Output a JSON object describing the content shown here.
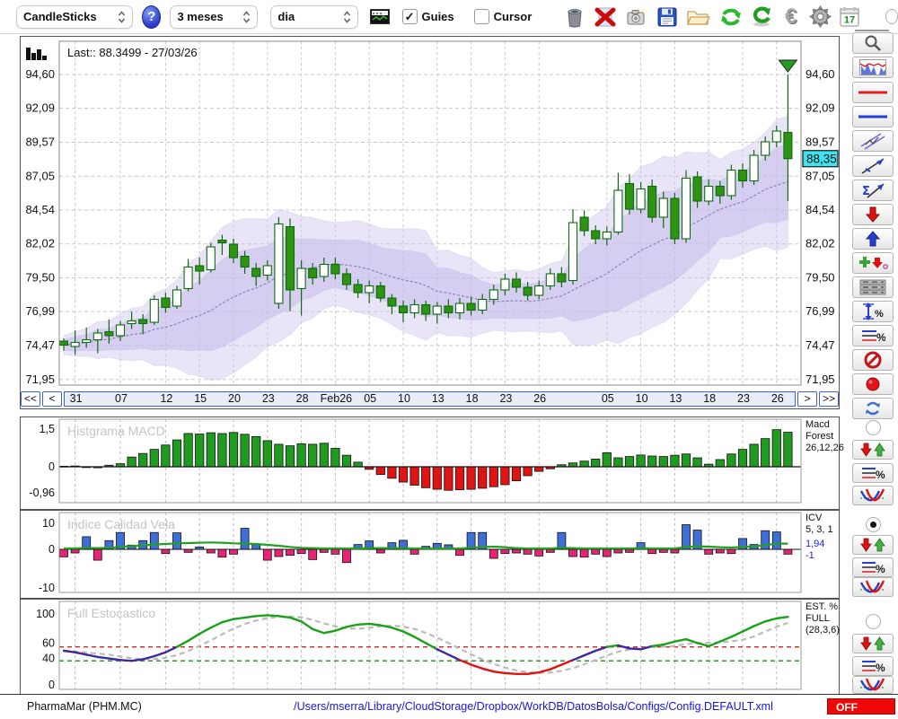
{
  "toolbar": {
    "chart_type_select": "CandleSticks",
    "help_label": "?",
    "period_select": "3 meses",
    "interval_select": "dia",
    "guies_label": "Guies",
    "cursor_label": "Cursor",
    "calendar_day": "17"
  },
  "main_chart": {
    "last_label": "Last:: 88.3499 - 27/03/26",
    "last_price_badge": "88,35",
    "y_ticks": [
      "94,60",
      "92,09",
      "89,57",
      "87,05",
      "84,54",
      "82,02",
      "79,50",
      "76,99",
      "74,47",
      "71,95"
    ],
    "nav": {
      "first": "<<",
      "prev": "<",
      "next": ">",
      "last": ">>"
    }
  },
  "panels": {
    "macd": {
      "title": "Histgrama MACD",
      "y_top": "1,5",
      "y_zero": "0",
      "y_bottom": "-0,96",
      "right_lines": [
        "Macd",
        "Forest",
        "26,12,26"
      ]
    },
    "icv": {
      "title": "Indice Calidad Vela",
      "y_top": "10",
      "y_zero": "0",
      "y_bottom": "-10",
      "right_lines": [
        "ICV",
        "5, 3, 1"
      ],
      "right_values": [
        "1,94",
        "-1"
      ]
    },
    "stoch": {
      "title": "Full Estocastico",
      "y_ticks": [
        "100",
        "60",
        "40",
        "0"
      ],
      "right_lines": [
        "EST. %",
        "FULL",
        "(28,3,6)"
      ]
    }
  },
  "statusbar": {
    "instrument": "PharmaMar (PHM.MC)",
    "config_path": "/Users/mserra/Library/CloudStorage/Dropbox/WorkDB/DatosBolsa/Configs/Config.DEFAULT.xml",
    "off_label": "OFF"
  },
  "colors": {
    "accent_blue": "#3b62d6",
    "candle_fill": "#2e9212",
    "candle_border": "#0f6b0f",
    "macd_green": "#1f9b1f",
    "macd_red": "#e21313",
    "icv_blue": "#3e6fd9",
    "icv_pink": "#e82277",
    "icv_line_green": "#22a022",
    "stoch_green": "#1aa11a",
    "stoch_red": "#e01212",
    "stoch_purple": "#3c2a9e",
    "stoch_signal_gray": "#bbbbbb",
    "band_lavender": "#cfc5f0",
    "badge_cyan": "#3fe3f0",
    "off_red": "#ee0808",
    "path_blue": "#1515dd",
    "grid_gray": "#c9c9c9",
    "upper_thresh_red": "#dd2222",
    "lower_thresh_green": "#1d8a1d"
  },
  "chart_data": [
    {
      "type": "candlestick",
      "title": "PharmaMar (PHM.MC) daily candles, 3 months",
      "ylim": [
        71.95,
        94.6
      ],
      "y_tick_values": [
        94.6,
        92.09,
        89.57,
        87.05,
        84.54,
        82.02,
        79.5,
        76.99,
        74.47,
        71.95
      ],
      "last_price": 88.35,
      "x_ticks": [
        {
          "label": "31",
          "i": 1
        },
        {
          "label": "07",
          "i": 5
        },
        {
          "label": "12",
          "i": 9
        },
        {
          "label": "15",
          "i": 12
        },
        {
          "label": "20",
          "i": 15
        },
        {
          "label": "23",
          "i": 18
        },
        {
          "label": "28",
          "i": 21
        },
        {
          "label": "Feb26",
          "i": 24
        },
        {
          "label": "05",
          "i": 27
        },
        {
          "label": "10",
          "i": 30
        },
        {
          "label": "13",
          "i": 33
        },
        {
          "label": "18",
          "i": 36
        },
        {
          "label": "23",
          "i": 39
        },
        {
          "label": "26",
          "i": 42
        },
        {
          "label": "05",
          "i": 48
        },
        {
          "label": "10",
          "i": 51
        },
        {
          "label": "13",
          "i": 54
        },
        {
          "label": "18",
          "i": 57
        },
        {
          "label": "23",
          "i": 60
        },
        {
          "label": "26",
          "i": 63
        }
      ],
      "ohlc": [
        [
          74.8,
          75.0,
          74.1,
          74.5
        ],
        [
          74.4,
          75.6,
          73.8,
          74.7
        ],
        [
          74.7,
          75.8,
          74.3,
          74.9
        ],
        [
          74.9,
          75.7,
          73.9,
          75.4
        ],
        [
          75.5,
          76.4,
          74.6,
          75.2
        ],
        [
          75.2,
          76.3,
          74.8,
          76.0
        ],
        [
          76.1,
          77.0,
          75.7,
          76.3
        ],
        [
          76.4,
          76.8,
          75.3,
          76.1
        ],
        [
          76.2,
          78.2,
          76.0,
          77.9
        ],
        [
          78.0,
          78.4,
          76.9,
          77.3
        ],
        [
          77.4,
          78.9,
          77.2,
          78.6
        ],
        [
          78.7,
          80.9,
          78.5,
          80.3
        ],
        [
          80.4,
          81.0,
          79.0,
          80.0
        ],
        [
          80.1,
          82.1,
          79.9,
          81.8
        ],
        [
          82.3,
          82.7,
          81.2,
          82.1
        ],
        [
          82.0,
          82.4,
          80.6,
          81.0
        ],
        [
          81.1,
          81.5,
          79.8,
          80.3
        ],
        [
          80.2,
          80.6,
          78.9,
          79.6
        ],
        [
          79.7,
          80.8,
          79.3,
          80.4
        ],
        [
          77.6,
          84.0,
          77.2,
          83.5
        ],
        [
          83.3,
          83.9,
          77.0,
          78.6
        ],
        [
          78.7,
          80.8,
          76.7,
          80.2
        ],
        [
          80.2,
          80.6,
          79.0,
          79.5
        ],
        [
          79.6,
          81.0,
          79.2,
          80.5
        ],
        [
          80.5,
          81.0,
          79.4,
          79.8
        ],
        [
          79.8,
          80.2,
          78.6,
          79.0
        ],
        [
          79.0,
          79.4,
          78.0,
          78.4
        ],
        [
          78.4,
          79.3,
          77.6,
          78.9
        ],
        [
          78.9,
          79.2,
          77.7,
          78.0
        ],
        [
          78.0,
          78.3,
          76.8,
          77.4
        ],
        [
          77.4,
          77.8,
          76.2,
          76.9
        ],
        [
          76.9,
          77.9,
          76.5,
          77.5
        ],
        [
          77.5,
          77.8,
          76.3,
          76.8
        ],
        [
          76.8,
          77.7,
          76.1,
          77.4
        ],
        [
          77.4,
          77.9,
          76.5,
          76.9
        ],
        [
          76.9,
          78.0,
          76.4,
          77.6
        ],
        [
          77.6,
          78.1,
          76.7,
          77.1
        ],
        [
          77.1,
          78.3,
          76.8,
          77.9
        ],
        [
          77.9,
          79.0,
          77.5,
          78.6
        ],
        [
          78.6,
          79.8,
          78.2,
          79.4
        ],
        [
          79.4,
          79.9,
          78.4,
          78.8
        ],
        [
          78.8,
          79.2,
          77.8,
          78.2
        ],
        [
          78.2,
          79.3,
          77.9,
          78.9
        ],
        [
          78.9,
          80.2,
          78.6,
          79.8
        ],
        [
          79.8,
          80.3,
          78.8,
          79.2
        ],
        [
          79.3,
          84.6,
          79.0,
          83.6
        ],
        [
          84.0,
          84.5,
          82.6,
          83.0
        ],
        [
          83.0,
          83.4,
          82.0,
          82.4
        ],
        [
          82.4,
          83.3,
          81.9,
          82.9
        ],
        [
          82.9,
          87.3,
          82.7,
          86.0
        ],
        [
          86.5,
          87.2,
          84.2,
          84.6
        ],
        [
          84.6,
          86.6,
          84.3,
          86.1
        ],
        [
          86.3,
          86.8,
          83.6,
          84.0
        ],
        [
          84.0,
          85.9,
          83.2,
          85.4
        ],
        [
          85.4,
          85.8,
          82.0,
          82.4
        ],
        [
          82.4,
          87.5,
          82.1,
          86.9
        ],
        [
          87.0,
          87.4,
          84.7,
          85.2
        ],
        [
          85.2,
          86.8,
          84.9,
          86.3
        ],
        [
          86.3,
          86.7,
          85.0,
          85.6
        ],
        [
          85.6,
          87.9,
          85.3,
          87.5
        ],
        [
          87.5,
          88.0,
          86.2,
          86.7
        ],
        [
          86.7,
          89.0,
          86.4,
          88.6
        ],
        [
          88.6,
          90.0,
          88.2,
          89.6
        ],
        [
          89.6,
          90.8,
          89.2,
          90.4
        ],
        [
          90.3,
          94.6,
          85.2,
          88.35
        ]
      ]
    },
    {
      "type": "bar",
      "title": "Histgrama MACD (26,12,26)",
      "ylim": [
        -0.96,
        1.5
      ],
      "values": [
        0.02,
        0.03,
        -0.03,
        -0.04,
        0.06,
        0.12,
        0.38,
        0.52,
        0.68,
        0.85,
        1.05,
        1.3,
        1.28,
        1.33,
        1.3,
        1.34,
        1.27,
        1.18,
        1.02,
        0.88,
        0.82,
        0.9,
        0.88,
        0.92,
        0.72,
        0.45,
        0.18,
        -0.1,
        -0.3,
        -0.45,
        -0.6,
        -0.72,
        -0.82,
        -0.88,
        -0.92,
        -0.9,
        -0.88,
        -0.84,
        -0.78,
        -0.7,
        -0.55,
        -0.35,
        -0.18,
        -0.08,
        0.08,
        0.15,
        0.22,
        0.3,
        0.55,
        0.35,
        0.4,
        0.46,
        0.42,
        0.4,
        0.45,
        0.5,
        0.35,
        0.1,
        0.28,
        0.5,
        0.68,
        0.88,
        1.1,
        1.45,
        1.35
      ]
    },
    {
      "type": "bar",
      "title": "Indice Calidad Vela (5,3,1)",
      "ylim": [
        -10,
        10
      ],
      "values": [
        -2.5,
        -1.2,
        4.2,
        -3.6,
        2.9,
        5.6,
        1.4,
        2.9,
        5.6,
        -1.4,
        5.5,
        -1.0,
        0.8,
        -1.2,
        -2.6,
        -1.6,
        7.0,
        1.6,
        -3.6,
        -2.4,
        -2.0,
        -1.4,
        -3.4,
        -1.0,
        -1.6,
        -4.4,
        1.6,
        2.8,
        -1.2,
        2.2,
        3.0,
        -1.6,
        1.0,
        2.0,
        1.5,
        -2.0,
        5.6,
        5.6,
        -3.0,
        -1.4,
        -1.2,
        -1.6,
        -2.2,
        -1.0,
        5.6,
        -2.4,
        -2.6,
        -1.6,
        -2.4,
        -1.2,
        -1.0,
        2.2,
        -1.4,
        -1.0,
        -1.2,
        8.2,
        6.4,
        -1.6,
        -1.2,
        -1.4,
        3.6,
        1.6,
        6.2,
        5.8,
        -1.6
      ],
      "ma_line": [
        0.3,
        0.3,
        0.5,
        0.4,
        0.5,
        0.8,
        1.1,
        1.3,
        1.6,
        1.8,
        2.0,
        2.1,
        2.2,
        2.3,
        2.2,
        2.0,
        1.9,
        1.8,
        1.5,
        1.2,
        0.8,
        0.5,
        0.4,
        0.3,
        0.3,
        0.3,
        0.3,
        0.4,
        0.4,
        0.4,
        0.4,
        0.3,
        0.3,
        0.3,
        0.3,
        0.3,
        0.5,
        0.8,
        0.9,
        0.7,
        0.4,
        0.3,
        0.3,
        0.3,
        0.5,
        0.4,
        0.3,
        0.3,
        0.3,
        0.3,
        0.3,
        0.4,
        0.3,
        0.3,
        0.3,
        0.8,
        1.0,
        0.9,
        0.7,
        0.6,
        0.8,
        1.0,
        1.4,
        1.9,
        1.9
      ],
      "ma_last_value": 1.94,
      "bar_last_value": -1
    },
    {
      "type": "line",
      "title": "Full Estocastico (28,3,6)",
      "ylim": [
        0,
        100
      ],
      "upper_threshold": 55,
      "lower_threshold": 37,
      "values": [
        50,
        48,
        45,
        42,
        40,
        38,
        37,
        39,
        43,
        48,
        55,
        63,
        72,
        80,
        87,
        91,
        93,
        95,
        96,
        95,
        93,
        88,
        78,
        73,
        76,
        81,
        84,
        85,
        83,
        80,
        75,
        68,
        60,
        52,
        45,
        38,
        32,
        27,
        23,
        21,
        20,
        20,
        22,
        26,
        32,
        38,
        44,
        50,
        55,
        57,
        53,
        52,
        56,
        58,
        62,
        65,
        60,
        56,
        62,
        68,
        75,
        82,
        88,
        92,
        94
      ]
    }
  ]
}
